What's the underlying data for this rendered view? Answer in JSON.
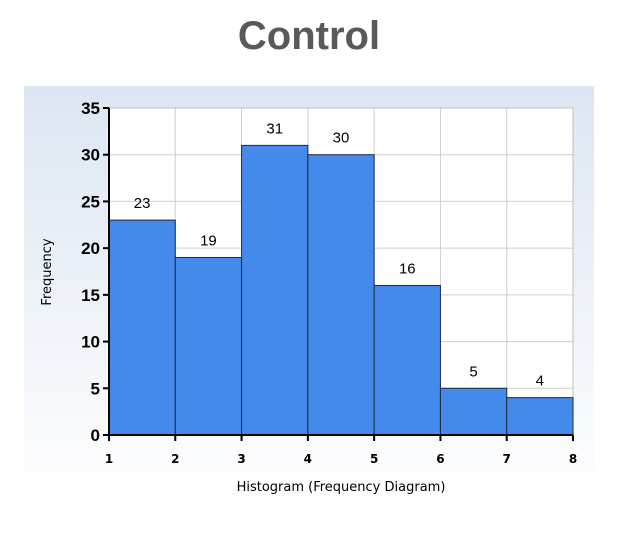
{
  "chart_data": {
    "type": "bar",
    "title": "Control",
    "xlabel": "Histogram (Frequency Diagram)",
    "ylabel": "Frequency",
    "bin_edges": [
      1,
      2,
      3,
      4,
      5,
      6,
      7,
      8
    ],
    "values": [
      23,
      19,
      31,
      30,
      16,
      5,
      4
    ],
    "x_ticks": [
      "1",
      "2",
      "3",
      "4",
      "5",
      "6",
      "7",
      "8"
    ],
    "y_ticks": [
      "0",
      "5",
      "10",
      "15",
      "20",
      "25",
      "30",
      "35"
    ],
    "xlim": [
      1,
      8
    ],
    "ylim": [
      0,
      35
    ],
    "grid": true,
    "bar_color": "#448aeb",
    "bar_edge_color": "#1f2a3a",
    "background_color": "#dce6f2"
  }
}
